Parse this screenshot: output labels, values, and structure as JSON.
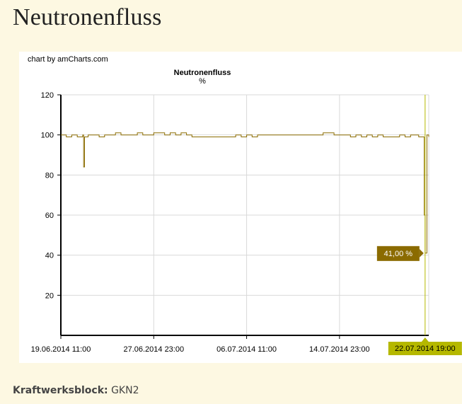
{
  "page": {
    "title": "Neutronenfluss",
    "credit": "chart by amCharts.com",
    "info_label": "Kraftwerksblock:",
    "info_value": "GKN2"
  },
  "chart_data": {
    "type": "line",
    "title": "Neutronenfluss",
    "subtitle": "%",
    "xlabel": "",
    "ylabel": "",
    "x_ticks": [
      "19.06.2014 11:00",
      "27.06.2014 23:00",
      "06.07.2014 11:00",
      "14.07.2014 23:00"
    ],
    "ylim": [
      0,
      120
    ],
    "y_ticks": [
      20,
      40,
      60,
      80,
      100,
      120
    ],
    "grid": true,
    "line_color": "#8b6b00",
    "cursor_color": "#b5b800",
    "cursor_label": "22.07.2014 19:00",
    "cursor_value_label": "41,00 %",
    "series": [
      {
        "x": [
          "2014-06-19 11:00",
          "2014-06-19 23:00",
          "2014-06-20 11:00",
          "2014-06-20 23:00",
          "2014-06-21 11:00",
          "2014-06-21 13:00",
          "2014-06-21 15:00",
          "2014-06-21 23:00",
          "2014-06-22 11:00",
          "2014-06-22 23:00",
          "2014-06-23 11:00",
          "2014-06-23 23:00",
          "2014-06-24 11:00",
          "2014-06-24 23:00",
          "2014-06-25 11:00",
          "2014-06-25 23:00",
          "2014-06-26 11:00",
          "2014-06-26 23:00",
          "2014-06-27 11:00",
          "2014-06-27 23:00",
          "2014-06-28 11:00",
          "2014-06-28 23:00",
          "2014-06-29 11:00",
          "2014-06-29 23:00",
          "2014-06-30 11:00",
          "2014-06-30 23:00",
          "2014-07-01 11:00",
          "2014-07-01 23:00",
          "2014-07-02 11:00",
          "2014-07-02 23:00",
          "2014-07-03 11:00",
          "2014-07-03 23:00",
          "2014-07-04 11:00",
          "2014-07-04 23:00",
          "2014-07-05 11:00",
          "2014-07-05 23:00",
          "2014-07-06 11:00",
          "2014-07-06 23:00",
          "2014-07-07 11:00",
          "2014-07-07 23:00",
          "2014-07-08 11:00",
          "2014-07-08 23:00",
          "2014-07-09 11:00",
          "2014-07-09 23:00",
          "2014-07-10 11:00",
          "2014-07-10 23:00",
          "2014-07-11 11:00",
          "2014-07-11 23:00",
          "2014-07-12 11:00",
          "2014-07-12 23:00",
          "2014-07-13 11:00",
          "2014-07-13 23:00",
          "2014-07-14 11:00",
          "2014-07-14 23:00",
          "2014-07-15 11:00",
          "2014-07-15 23:00",
          "2014-07-16 11:00",
          "2014-07-16 23:00",
          "2014-07-17 11:00",
          "2014-07-17 23:00",
          "2014-07-18 11:00",
          "2014-07-18 23:00",
          "2014-07-19 11:00",
          "2014-07-19 23:00",
          "2014-07-20 11:00",
          "2014-07-20 23:00",
          "2014-07-21 11:00",
          "2014-07-21 23:00",
          "2014-07-22 05:00",
          "2014-07-22 11:00",
          "2014-07-22 17:00",
          "2014-07-22 19:00",
          "2014-07-22 23:00",
          "2014-07-23 03:00"
        ],
        "y": [
          100,
          99,
          100,
          99,
          100,
          84,
          99,
          100,
          100,
          99,
          100,
          100,
          101,
          100,
          100,
          100,
          101,
          100,
          100,
          101,
          101,
          100,
          101,
          100,
          101,
          100,
          99,
          99,
          99,
          99,
          99,
          99,
          99,
          99,
          100,
          99,
          100,
          99,
          100,
          100,
          100,
          100,
          100,
          100,
          100,
          100,
          100,
          100,
          100,
          100,
          101,
          101,
          100,
          100,
          100,
          99,
          100,
          99,
          100,
          99,
          100,
          99,
          99,
          99,
          100,
          99,
          100,
          100,
          99,
          99,
          60,
          41,
          100,
          99
        ]
      }
    ]
  }
}
